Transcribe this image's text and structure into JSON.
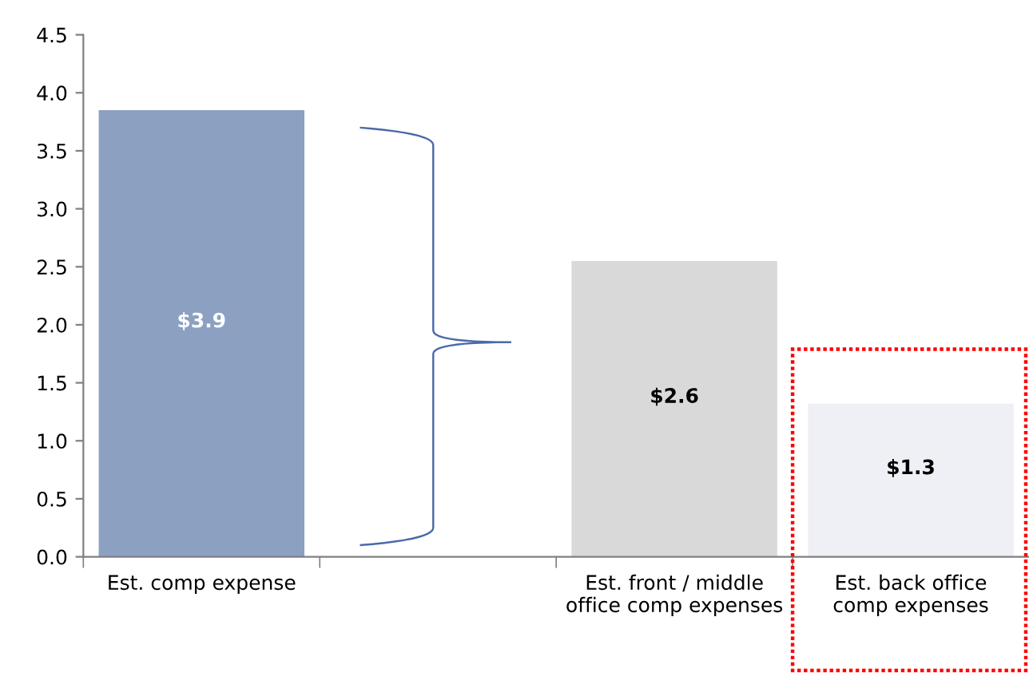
{
  "chart_data": {
    "type": "bar",
    "categories": [
      "Est. comp expense",
      null,
      "Est. front / middle office comp expenses",
      "Est. back office comp expenses"
    ],
    "values": [
      3.85,
      null,
      2.55,
      1.32
    ],
    "colors": [
      "#8ca0c2",
      "#d9d9d9",
      "#d9d9d9",
      "#eef0f5"
    ],
    "value_labels": [
      "$3.9",
      null,
      "$2.6",
      "$1.3"
    ],
    "ylim": [
      0,
      4.5
    ],
    "yticks": [
      {
        "value": 0,
        "label": "0.0"
      },
      {
        "value": 0.5,
        "label": "0.5"
      },
      {
        "value": 1,
        "label": "1.0"
      },
      {
        "value": 1.5,
        "label": "1.5"
      },
      {
        "value": 2,
        "label": "2.0"
      },
      {
        "value": 2.5,
        "label": "2.5"
      },
      {
        "value": 3,
        "label": "3.0"
      },
      {
        "value": 3.5,
        "label": "3.5"
      },
      {
        "value": 4,
        "label": "4.0"
      },
      {
        "value": 4.5,
        "label": "4.5"
      }
    ],
    "grid": false,
    "legend": false
  }
}
